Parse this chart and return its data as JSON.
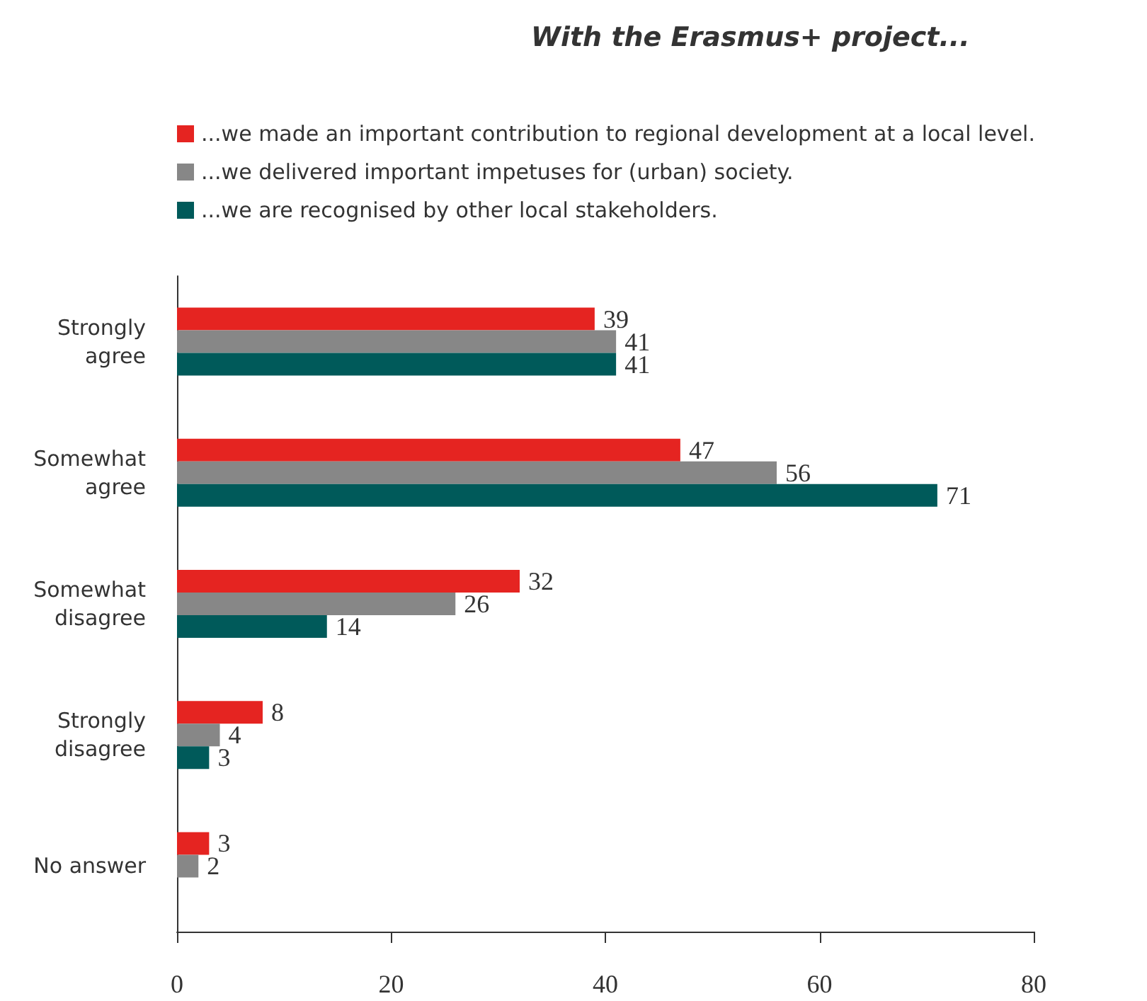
{
  "chart_data": {
    "type": "bar",
    "orientation": "horizontal",
    "title": "With the Erasmus+ project...",
    "categories": [
      "Strongly\nagree",
      "Somewhat\nagree",
      "Somewhat\ndisagree",
      "Strongly\ndisagree",
      "No answer"
    ],
    "series": [
      {
        "name": "...we made an important contribution to regional development at a local level.",
        "color": "#e52421",
        "values": [
          39,
          47,
          32,
          8,
          3
        ]
      },
      {
        "name": "...we delivered important impetuses for (urban) society.",
        "color": "#878787",
        "values": [
          41,
          56,
          26,
          4,
          2
        ]
      },
      {
        "name": "...we are recognised by other local stakeholders.",
        "color": "#005a5a",
        "values": [
          41,
          71,
          14,
          3,
          null
        ]
      }
    ],
    "xlim": [
      0,
      80
    ],
    "xticks": [
      0,
      20,
      40,
      60,
      80
    ],
    "data_labels": true,
    "legend": "top left",
    "grid": false
  }
}
